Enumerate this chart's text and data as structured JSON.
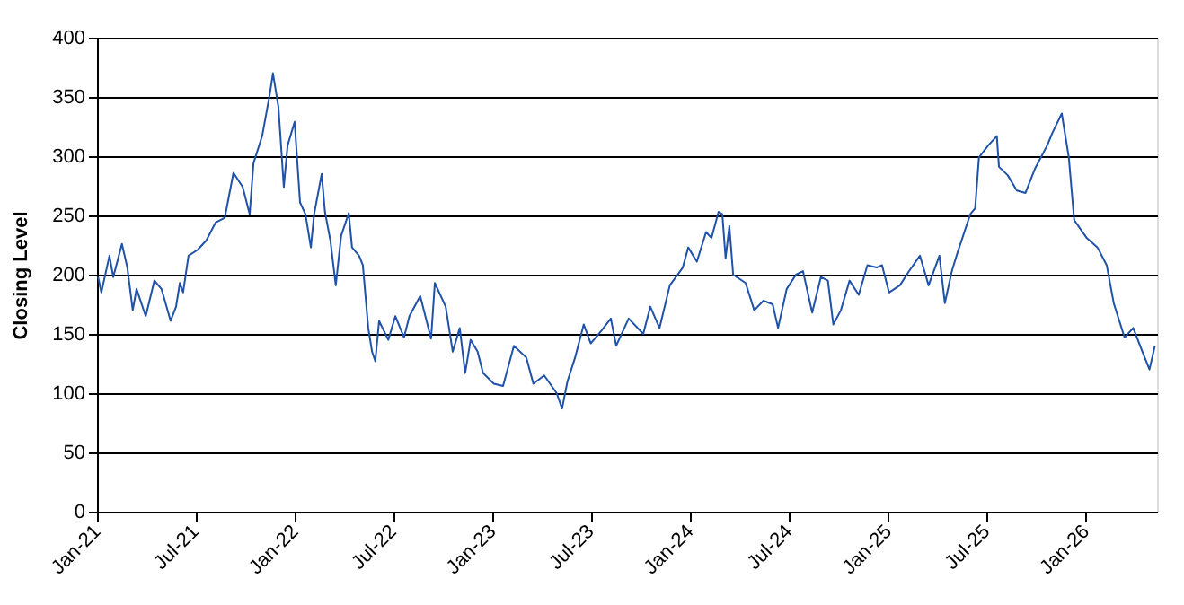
{
  "chart_data": {
    "type": "line",
    "ylabel": "Closing Level",
    "x": [
      "2021-01-03",
      "2021-01-09",
      "2021-01-24",
      "2021-01-31",
      "2021-02-16",
      "2021-02-26",
      "2021-03-08",
      "2021-03-15",
      "2021-04-01",
      "2021-04-17",
      "2021-04-30",
      "2021-05-17",
      "2021-05-27",
      "2021-06-03",
      "2021-06-09",
      "2021-06-19",
      "2021-07-06",
      "2021-07-22",
      "2021-08-08",
      "2021-08-25",
      "2021-09-10",
      "2021-09-27",
      "2021-10-10",
      "2021-10-17",
      "2021-11-02",
      "2021-11-16",
      "2021-11-22",
      "2021-12-02",
      "2021-12-05",
      "2021-12-12",
      "2021-12-19",
      "2022-01-01",
      "2022-01-11",
      "2022-01-21",
      "2022-01-31",
      "2022-02-06",
      "2022-02-20",
      "2022-02-26",
      "2022-03-08",
      "2022-03-18",
      "2022-03-28",
      "2022-04-11",
      "2022-04-17",
      "2022-04-30",
      "2022-05-07",
      "2022-05-17",
      "2022-05-24",
      "2022-05-30",
      "2022-06-06",
      "2022-06-23",
      "2022-07-06",
      "2022-07-22",
      "2022-08-01",
      "2022-08-21",
      "2022-09-10",
      "2022-09-17",
      "2022-10-07",
      "2022-10-20",
      "2022-11-02",
      "2022-11-12",
      "2022-11-22",
      "2022-12-05",
      "2022-12-15",
      "2023-01-04",
      "2023-01-21",
      "2023-02-10",
      "2023-03-05",
      "2023-03-18",
      "2023-04-07",
      "2023-04-30",
      "2023-05-10",
      "2023-05-20",
      "2023-06-03",
      "2023-06-19",
      "2023-07-02",
      "2023-07-22",
      "2023-08-08",
      "2023-08-18",
      "2023-09-10",
      "2023-10-07",
      "2023-10-20",
      "2023-11-06",
      "2023-11-25",
      "2023-12-19",
      "2023-12-29",
      "2024-01-14",
      "2024-01-31",
      "2024-02-10",
      "2024-02-23",
      "2024-03-01",
      "2024-03-07",
      "2024-03-14",
      "2024-03-21",
      "2024-04-13",
      "2024-04-29",
      "2024-05-16",
      "2024-06-02",
      "2024-06-12",
      "2024-06-28",
      "2024-07-15",
      "2024-07-28",
      "2024-08-14",
      "2024-08-30",
      "2024-09-12",
      "2024-09-22",
      "2024-10-06",
      "2024-10-22",
      "2024-11-08",
      "2024-11-24",
      "2024-12-11",
      "2024-12-21",
      "2025-01-03",
      "2025-01-23",
      "2025-02-09",
      "2025-03-01",
      "2025-03-17",
      "2025-04-06",
      "2025-04-16",
      "2025-04-29",
      "2025-05-09",
      "2025-06-02",
      "2025-06-11",
      "2025-06-18",
      "2025-07-05",
      "2025-07-21",
      "2025-07-25",
      "2025-08-10",
      "2025-08-27",
      "2025-09-12",
      "2025-09-29",
      "2025-10-22",
      "2025-11-01",
      "2025-11-18",
      "2025-12-01",
      "2025-12-11",
      "2026-01-03",
      "2026-01-23",
      "2026-02-09",
      "2026-02-22",
      "2026-03-14",
      "2026-03-30",
      "2026-04-16",
      "2026-04-29",
      "2026-05-09"
    ],
    "series": [
      {
        "color": "#1f52a8",
        "values": [
          198,
          185,
          216,
          198,
          226,
          206,
          170,
          188,
          165,
          195,
          188,
          161,
          173,
          193,
          185,
          216,
          221,
          229,
          244,
          248,
          286,
          274,
          251,
          294,
          317,
          352,
          370,
          342,
          322,
          274,
          309,
          329,
          261,
          251,
          223,
          251,
          285,
          253,
          229,
          191,
          233,
          252,
          223,
          216,
          208,
          155,
          135,
          127,
          161,
          145,
          165,
          147,
          165,
          182,
          146,
          193,
          173,
          135,
          155,
          117,
          145,
          135,
          117,
          108,
          106,
          140,
          130,
          108,
          115,
          100,
          87,
          110,
          130,
          158,
          142,
          153,
          163,
          140,
          163,
          150,
          173,
          155,
          191,
          206,
          223,
          211,
          236,
          231,
          253,
          251,
          214,
          241,
          200,
          193,
          170,
          178,
          175,
          155,
          188,
          200,
          203,
          168,
          198,
          195,
          158,
          170,
          195,
          183,
          208,
          206,
          208,
          185,
          191,
          203,
          216,
          191,
          216,
          176,
          203,
          218,
          251,
          256,
          299,
          309,
          317,
          291,
          284,
          271,
          269,
          289,
          309,
          320,
          336,
          299,
          246,
          231,
          223,
          208,
          176,
          147,
          155,
          135,
          120,
          140
        ]
      }
    ],
    "xlim": [
      "2021-01-01",
      "2026-05-13"
    ],
    "xticks": [
      {
        "value": "2021-01-01",
        "label": "Jan-21"
      },
      {
        "value": "2021-07-01",
        "label": "Jul-21"
      },
      {
        "value": "2022-01-01",
        "label": "Jan-22"
      },
      {
        "value": "2022-07-01",
        "label": "Jul-22"
      },
      {
        "value": "2023-01-01",
        "label": "Jan-23"
      },
      {
        "value": "2023-07-01",
        "label": "Jul-23"
      },
      {
        "value": "2024-01-01",
        "label": "Jan-24"
      },
      {
        "value": "2024-07-01",
        "label": "Jul-24"
      },
      {
        "value": "2025-01-01",
        "label": "Jan-25"
      },
      {
        "value": "2025-07-01",
        "label": "Jul-25"
      },
      {
        "value": "2026-01-01",
        "label": "Jan-26"
      }
    ],
    "ylim": [
      0,
      400
    ],
    "yticks": [
      0,
      50,
      100,
      150,
      200,
      250,
      300,
      350,
      400
    ],
    "grid": "y",
    "marker": "none",
    "line_style": "solid"
  }
}
